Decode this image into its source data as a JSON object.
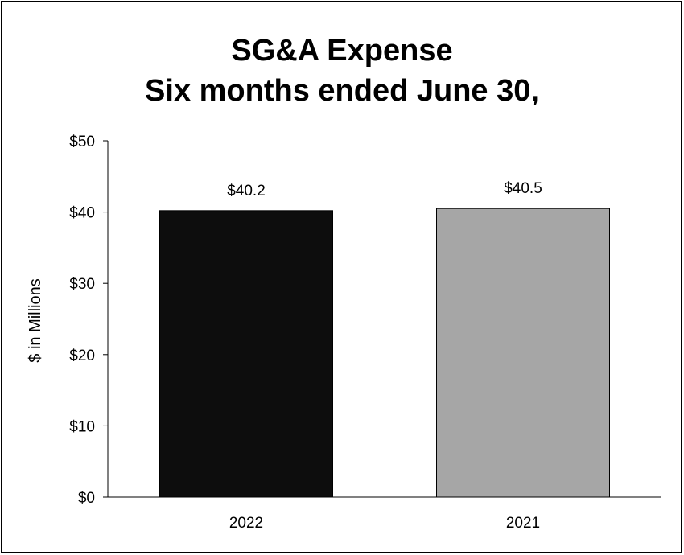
{
  "chart_data": {
    "type": "bar",
    "title": "SG&A Expense",
    "subtitle": "Six months ended June 30,",
    "xlabel": "",
    "ylabel": "$ in Millions",
    "categories": [
      "2022",
      "2021"
    ],
    "values": [
      40.2,
      40.5
    ],
    "data_labels": [
      "$40.2",
      "$40.5"
    ],
    "bar_colors": [
      "#0d0d0d",
      "#a6a6a6"
    ],
    "ylim": [
      0,
      50
    ],
    "yticks": [
      0,
      10,
      20,
      30,
      40,
      50
    ],
    "ytick_labels": [
      "$0",
      "$10",
      "$20",
      "$30",
      "$40",
      "$50"
    ],
    "grid": false,
    "legend": "none"
  }
}
